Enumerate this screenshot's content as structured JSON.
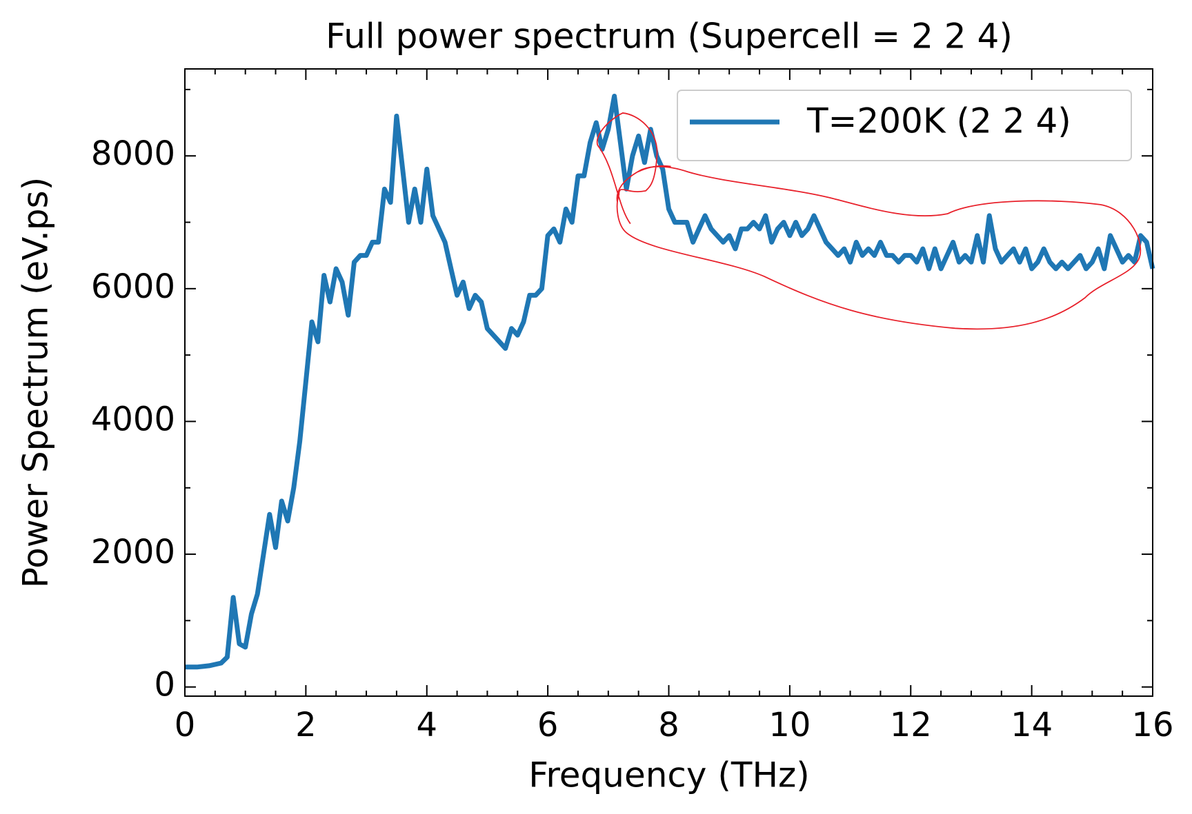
{
  "chart_data": {
    "type": "line",
    "title": "Full power spectrum (Supercell = 2 2 4)",
    "xlabel": "Frequency (THz)",
    "ylabel": "Power Spectrum (eV.ps)",
    "xlim": [
      0,
      16
    ],
    "ylim": [
      -138,
      9310
    ],
    "xticks": [
      0,
      2,
      4,
      6,
      8,
      10,
      12,
      14,
      16
    ],
    "yticks": [
      0,
      2000,
      4000,
      6000,
      8000
    ],
    "xminorticks": [
      0.5,
      1,
      1.5,
      2.5,
      3,
      3.5,
      4.5,
      5,
      5.5,
      6.5,
      7,
      7.5,
      8.5,
      9,
      9.5,
      10.5,
      11,
      11.5,
      12.5,
      13,
      13.5,
      14.5,
      15,
      15.5
    ],
    "yminorticks": [
      1000,
      3000,
      5000,
      7000,
      9000
    ],
    "legend_position": "upper right",
    "x": [
      0,
      0.1,
      0.2,
      0.3,
      0.4,
      0.5,
      0.6,
      0.7,
      0.8,
      0.9,
      1,
      1.1,
      1.2,
      1.3,
      1.4,
      1.5,
      1.6,
      1.7,
      1.8,
      1.9,
      2,
      2.1,
      2.2,
      2.3,
      2.4,
      2.5,
      2.6,
      2.7,
      2.8,
      2.9,
      3,
      3.1,
      3.2,
      3.3,
      3.4,
      3.5,
      3.6,
      3.7,
      3.8,
      3.9,
      4,
      4.1,
      4.2,
      4.3,
      4.4,
      4.5,
      4.6,
      4.7,
      4.8,
      4.9,
      5,
      5.1,
      5.2,
      5.3,
      5.4,
      5.5,
      5.6,
      5.7,
      5.8,
      5.9,
      6,
      6.1,
      6.2,
      6.3,
      6.4,
      6.5,
      6.6,
      6.7,
      6.8,
      6.9,
      7,
      7.1,
      7.2,
      7.3,
      7.4,
      7.5,
      7.6,
      7.7,
      7.8,
      7.9,
      8,
      8.1,
      8.2,
      8.3,
      8.4,
      8.5,
      8.6,
      8.7,
      8.8,
      8.9,
      9,
      9.1,
      9.2,
      9.3,
      9.4,
      9.5,
      9.6,
      9.7,
      9.8,
      9.9,
      10,
      10.1,
      10.2,
      10.3,
      10.4,
      10.5,
      10.6,
      10.7,
      10.8,
      10.9,
      11,
      11.1,
      11.2,
      11.3,
      11.4,
      11.5,
      11.6,
      11.7,
      11.8,
      11.9,
      12,
      12.1,
      12.2,
      12.3,
      12.4,
      12.5,
      12.6,
      12.7,
      12.8,
      12.9,
      13,
      13.1,
      13.2,
      13.3,
      13.4,
      13.5,
      13.6,
      13.7,
      13.8,
      13.9,
      14,
      14.1,
      14.2,
      14.3,
      14.4,
      14.5,
      14.6,
      14.7,
      14.8,
      14.9,
      15,
      15.1,
      15.2,
      15.3,
      15.4,
      15.5,
      15.6,
      15.7,
      15.8,
      15.9,
      16
    ],
    "series": [
      {
        "name": "T=200K (2 2 4)",
        "color": "#1f77b4",
        "values": [
          300,
          300,
          300,
          310,
          320,
          340,
          360,
          450,
          1350,
          650,
          600,
          1100,
          1400,
          2000,
          2600,
          2100,
          2800,
          2500,
          3000,
          3700,
          4600,
          5500,
          5200,
          6200,
          5800,
          6300,
          6100,
          5600,
          6400,
          6500,
          6500,
          6700,
          6700,
          7500,
          7300,
          8600,
          7800,
          7000,
          7500,
          7000,
          7800,
          7100,
          6900,
          6700,
          6300,
          5900,
          6100,
          5700,
          5900,
          5800,
          5400,
          5300,
          5200,
          5100,
          5400,
          5300,
          5500,
          5900,
          5900,
          6000,
          6800,
          6900,
          6700,
          7200,
          7000,
          7700,
          7700,
          8200,
          8500,
          8100,
          8400,
          8900,
          8200,
          7500,
          8000,
          8300,
          7900,
          8400,
          8000,
          7800,
          7200,
          7000,
          7000,
          7000,
          6700,
          6900,
          7100,
          6900,
          6800,
          6700,
          6800,
          6600,
          6900,
          6900,
          7000,
          6900,
          7100,
          6700,
          6900,
          7000,
          6800,
          7000,
          6800,
          6900,
          7100,
          6900,
          6700,
          6600,
          6500,
          6600,
          6400,
          6700,
          6500,
          6600,
          6500,
          6700,
          6500,
          6500,
          6400,
          6500,
          6500,
          6400,
          6600,
          6300,
          6600,
          6300,
          6500,
          6700,
          6400,
          6500,
          6400,
          6800,
          6400,
          7100,
          6600,
          6400,
          6500,
          6600,
          6400,
          6600,
          6300,
          6400,
          6600,
          6400,
          6300,
          6400,
          6300,
          6400,
          6500,
          6300,
          6400,
          6600,
          6300,
          6800,
          6600,
          6400,
          6500,
          6400,
          6800,
          6700,
          6300
        ]
      }
    ]
  }
}
